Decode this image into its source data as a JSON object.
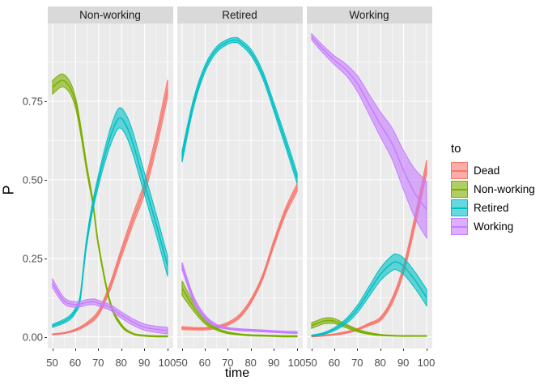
{
  "figure": {
    "x_axis_title": "time",
    "y_axis_title": "P",
    "x_ticks": [
      50,
      60,
      70,
      80,
      90,
      100
    ],
    "x_minor_ticks": [
      55,
      65,
      75,
      85,
      95
    ],
    "y_tick_labels": [
      "0.00",
      "0.25",
      "0.50",
      "0.75"
    ],
    "y_tick_values": [
      0,
      0.25,
      0.5,
      0.75
    ],
    "y_minor_ticks": [
      0.125,
      0.375,
      0.625,
      0.875
    ],
    "colors": {
      "panel_bg": "#EBEBEB",
      "strip_bg": "#D9D9D9",
      "gridline": "#FFFFFF",
      "tick_text": "#4D4D4D",
      "strip_text": "#1A1A1A",
      "tick_mark": "#333333"
    }
  },
  "legend": {
    "title": "to",
    "entries": [
      {
        "label": "Dead",
        "color": "#F8766D"
      },
      {
        "label": "Non-working",
        "color": "#7CAE00"
      },
      {
        "label": "Retired",
        "color": "#00BFC4"
      },
      {
        "label": "Working",
        "color": "#C77CFF"
      }
    ]
  },
  "chart_data": {
    "type": "line",
    "description": "Faceted transition-probability curves with confidence ribbons; facet = origin state, color = destination state",
    "xlabel": "time",
    "ylabel": "P",
    "x_range": [
      50,
      100
    ],
    "facets": [
      {
        "label": "Non-working",
        "series": [
          {
            "name": "Dead",
            "x": [
              50,
              55,
              60,
              65,
              70,
              75,
              80,
              85,
              90,
              95,
              100
            ],
            "y": [
              0.008,
              0.012,
              0.022,
              0.042,
              0.077,
              0.16,
              0.27,
              0.375,
              0.475,
              0.62,
              0.79
            ],
            "hw": [
              0.002,
              0.002,
              0.003,
              0.005,
              0.008,
              0.011,
              0.014,
              0.017,
              0.02,
              0.024,
              0.028
            ]
          },
          {
            "name": "Non-working",
            "x": [
              50,
              55,
              60,
              65,
              67.5,
              70,
              75,
              80,
              85,
              90,
              95,
              100
            ],
            "y": [
              0.795,
              0.815,
              0.745,
              0.53,
              0.428,
              0.29,
              0.11,
              0.036,
              0.01,
              0.004,
              0.002,
              0.002
            ],
            "hw": [
              0.022,
              0.02,
              0.017,
              0.012,
              0.01,
              0.008,
              0.006,
              0.004,
              0.002,
              0.002,
              0.002,
              0.002
            ]
          },
          {
            "name": "Retired",
            "x": [
              50,
              55,
              58,
              60,
              62,
              64.5,
              67,
              70,
              73,
              76,
              79,
              82,
              85,
              90,
              95,
              100
            ],
            "y": [
              0.035,
              0.05,
              0.065,
              0.085,
              0.125,
              0.286,
              0.4,
              0.5,
              0.585,
              0.655,
              0.697,
              0.673,
              0.615,
              0.487,
              0.36,
              0.225
            ],
            "hw": [
              0.005,
              0.006,
              0.007,
              0.008,
              0.01,
              0.013,
              0.015,
              0.018,
              0.023,
              0.028,
              0.032,
              0.034,
              0.035,
              0.034,
              0.033,
              0.032
            ]
          },
          {
            "name": "Working",
            "x": [
              50,
              55,
              60,
              65,
              68,
              70,
              75,
              80,
              85,
              90,
              95,
              100
            ],
            "y": [
              0.17,
              0.115,
              0.103,
              0.11,
              0.112,
              0.107,
              0.094,
              0.069,
              0.047,
              0.031,
              0.024,
              0.02
            ],
            "hw": [
              0.014,
              0.01,
              0.009,
              0.009,
              0.009,
              0.009,
              0.009,
              0.01,
              0.01,
              0.01,
              0.01,
              0.01
            ]
          }
        ]
      },
      {
        "label": "Retired",
        "series": [
          {
            "name": "Dead",
            "x": [
              50,
              55,
              60,
              65,
              70,
              75,
              80,
              85,
              90,
              95,
              100
            ],
            "y": [
              0.028,
              0.026,
              0.026,
              0.031,
              0.042,
              0.066,
              0.115,
              0.19,
              0.3,
              0.4,
              0.475
            ],
            "hw": [
              0.005,
              0.004,
              0.004,
              0.004,
              0.005,
              0.006,
              0.007,
              0.008,
              0.01,
              0.011,
              0.013
            ]
          },
          {
            "name": "Non-working",
            "x": [
              50,
              55,
              60,
              65,
              70,
              75,
              80,
              85,
              90,
              95,
              100
            ],
            "y": [
              0.155,
              0.095,
              0.048,
              0.025,
              0.013,
              0.008,
              0.005,
              0.004,
              0.003,
              0.002,
              0.002
            ],
            "hw": [
              0.023,
              0.013,
              0.007,
              0.004,
              0.003,
              0.002,
              0.002,
              0.002,
              0.002,
              0.002,
              0.002
            ]
          },
          {
            "name": "Retired",
            "x": [
              50,
              55,
              60,
              65,
              70,
              73,
              75,
              80,
              85,
              90,
              95,
              100
            ],
            "y": [
              0.575,
              0.745,
              0.855,
              0.915,
              0.94,
              0.945,
              0.94,
              0.905,
              0.835,
              0.73,
              0.62,
              0.505
            ],
            "hw": [
              0.019,
              0.014,
              0.011,
              0.009,
              0.008,
              0.008,
              0.008,
              0.01,
              0.012,
              0.014,
              0.016,
              0.017
            ]
          },
          {
            "name": "Working",
            "x": [
              50,
              55,
              60,
              65,
              70,
              75,
              80,
              85,
              90,
              95,
              100
            ],
            "y": [
              0.225,
              0.12,
              0.063,
              0.036,
              0.027,
              0.023,
              0.021,
              0.019,
              0.017,
              0.015,
              0.014
            ],
            "hw": [
              0.012,
              0.009,
              0.006,
              0.004,
              0.003,
              0.003,
              0.003,
              0.003,
              0.003,
              0.003,
              0.003
            ]
          }
        ]
      },
      {
        "label": "Working",
        "series": [
          {
            "name": "Dead",
            "x": [
              50,
              55,
              60,
              65,
              70,
              75,
              80,
              85,
              90,
              95,
              100
            ],
            "y": [
              0.002,
              0.004,
              0.008,
              0.014,
              0.024,
              0.04,
              0.058,
              0.115,
              0.215,
              0.37,
              0.54
            ],
            "hw": [
              0.002,
              0.002,
              0.002,
              0.003,
              0.003,
              0.004,
              0.006,
              0.009,
              0.013,
              0.018,
              0.023
            ]
          },
          {
            "name": "Non-working",
            "x": [
              50,
              55,
              58,
              60,
              65,
              70,
              75,
              80,
              85,
              90,
              95,
              100
            ],
            "y": [
              0.036,
              0.05,
              0.052,
              0.05,
              0.035,
              0.02,
              0.011,
              0.006,
              0.004,
              0.003,
              0.003,
              0.003
            ],
            "hw": [
              0.009,
              0.009,
              0.009,
              0.008,
              0.006,
              0.004,
              0.003,
              0.002,
              0.0015,
              0.0015,
              0.0015,
              0.0015
            ]
          },
          {
            "name": "Retired",
            "x": [
              50,
              55,
              60,
              65,
              70,
              75,
              80,
              85,
              87,
              90,
              95,
              100
            ],
            "y": [
              0.004,
              0.01,
              0.025,
              0.05,
              0.09,
              0.145,
              0.2,
              0.235,
              0.238,
              0.225,
              0.18,
              0.125
            ],
            "hw": [
              0.002,
              0.003,
              0.005,
              0.008,
              0.012,
              0.016,
              0.02,
              0.024,
              0.025,
              0.026,
              0.026,
              0.026
            ]
          },
          {
            "name": "Working",
            "x": [
              50,
              55,
              60,
              65,
              70,
              75,
              80,
              85,
              90,
              95,
              100
            ],
            "y": [
              0.955,
              0.915,
              0.88,
              0.85,
              0.805,
              0.74,
              0.675,
              0.615,
              0.53,
              0.455,
              0.405
            ],
            "hw": [
              0.01,
              0.012,
              0.014,
              0.018,
              0.025,
              0.032,
              0.04,
              0.05,
              0.062,
              0.078,
              0.09
            ]
          }
        ]
      }
    ]
  }
}
